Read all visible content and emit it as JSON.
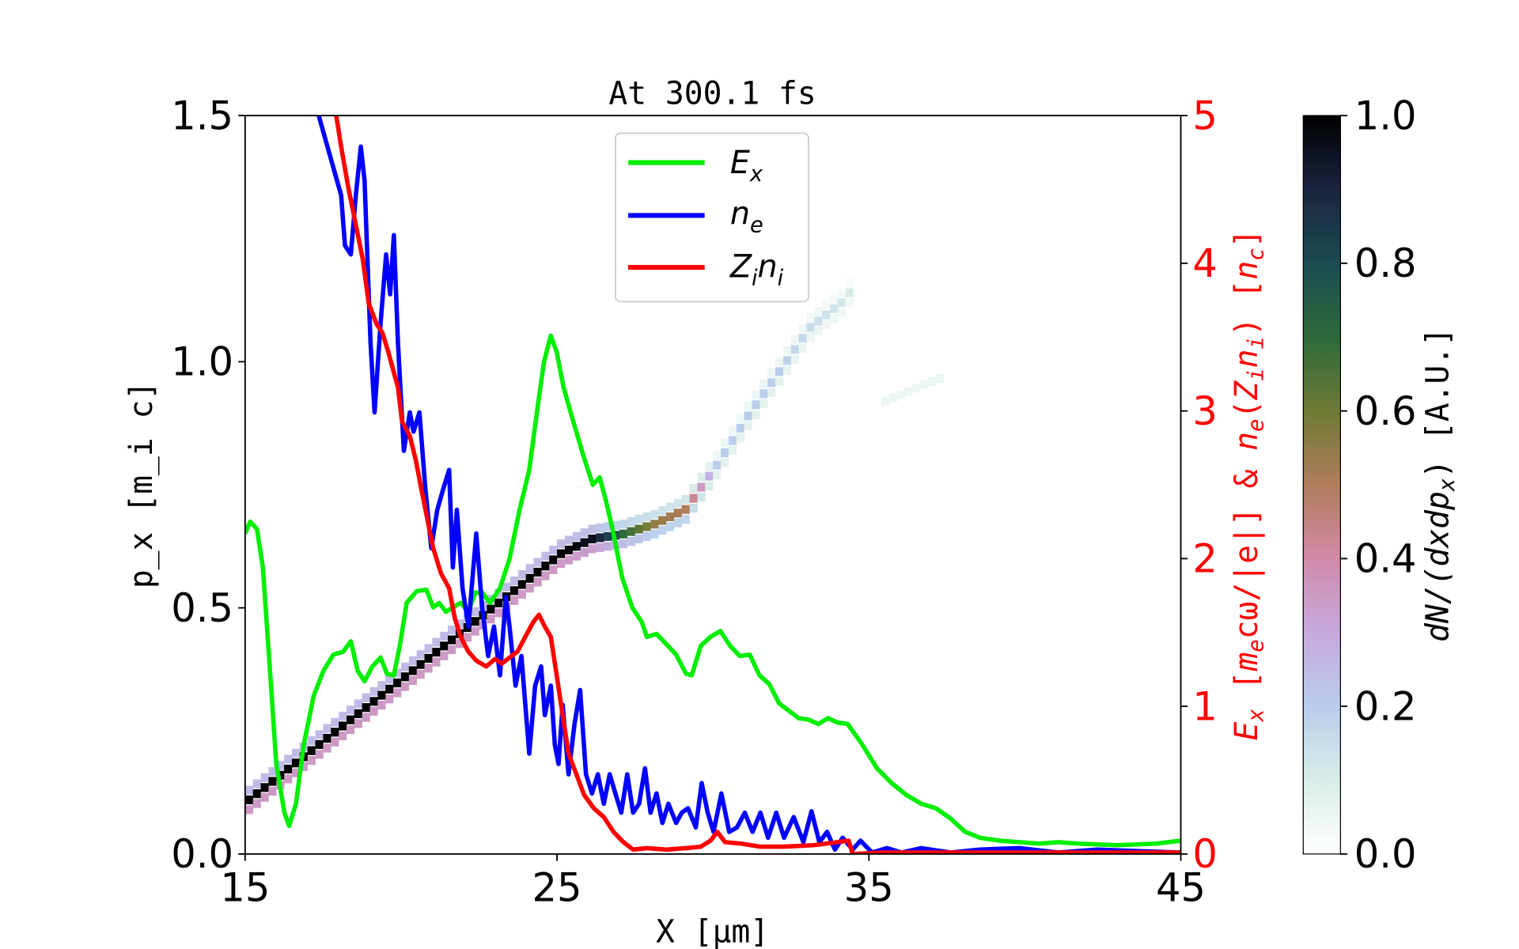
{
  "chart_data": {
    "type": "line",
    "title": "At 300.1 fs",
    "xlabel": "X [μm]",
    "xlabel_parts": {
      "main": "X [",
      "mu": "μm",
      "end": "]"
    },
    "ylabel": "p_x [m_i c]",
    "ylabel_parts": {
      "p": "p",
      "sub": "x",
      "rest": " [m",
      "sub2": "i",
      "end": "c]"
    },
    "y2label": "E_x [m_e cω/|e|] & n_e(Z_i n_i) [n_c]",
    "y2label_parts": [
      "E",
      "x",
      " [",
      "m",
      "e",
      "cω/|e|] & ",
      "n",
      "e",
      "(",
      "Z",
      "i",
      "n",
      "i",
      ") [",
      "n",
      "c",
      "]"
    ],
    "cbar_label": "dN/(dxdp_x) [A.U.]",
    "cbar_label_parts": {
      "main": "dN/(dxdp",
      "sub": "x",
      "end": ")  [A.U.]"
    },
    "xlim": [
      15,
      45
    ],
    "ylim": [
      0,
      1.5
    ],
    "y2lim": [
      0,
      5
    ],
    "clim": [
      0,
      1
    ],
    "xticks": [
      "15",
      "25",
      "35",
      "45"
    ],
    "yticks": [
      "0.0",
      "0.5",
      "1.0",
      "1.5"
    ],
    "y2ticks": [
      "0",
      "1",
      "2",
      "3",
      "4",
      "5"
    ],
    "cticks": [
      "0.0",
      "0.2",
      "0.4",
      "0.6",
      "0.8",
      "1.0"
    ],
    "legend": {
      "placement": "top-center",
      "entries": [
        {
          "main": "E",
          "sub": "x",
          "color": "#00ee00"
        },
        {
          "main": "n",
          "sub": "e",
          "color": "#0000ff"
        },
        {
          "main": "Z",
          "sub": "i",
          "main2": "n",
          "sub2": "i",
          "color": "#ff0000"
        }
      ]
    },
    "colors": {
      "Ex": "#00ee00",
      "ne": "#0000ff",
      "Zini": "#ff0000",
      "right_axis": "#ff0000"
    },
    "series": [
      {
        "name": "Ex",
        "axis": "right",
        "x": [
          15.0,
          15.16,
          15.38,
          15.57,
          15.79,
          16.0,
          16.26,
          16.41,
          16.63,
          16.88,
          17.2,
          17.51,
          17.83,
          18.14,
          18.39,
          18.61,
          18.83,
          19.08,
          19.34,
          19.55,
          19.77,
          19.96,
          20.18,
          20.5,
          20.81,
          21.03,
          21.22,
          21.44,
          21.66,
          21.91,
          22.16,
          22.38,
          22.6,
          22.85,
          23.17,
          23.48,
          23.8,
          24.11,
          24.36,
          24.58,
          24.8,
          24.99,
          25.21,
          25.52,
          25.84,
          26.15,
          26.37,
          26.56,
          26.78,
          27.09,
          27.41,
          27.72,
          27.88,
          28.19,
          28.51,
          28.82,
          29.14,
          29.32,
          29.61,
          29.92,
          30.24,
          30.55,
          30.86,
          31.18,
          31.49,
          31.81,
          32.12,
          32.43,
          32.75,
          33.06,
          33.38,
          33.69,
          34.0,
          34.32,
          34.79,
          35.26,
          35.73,
          36.2,
          36.68,
          37.15,
          37.62,
          38.09,
          38.56,
          39.19,
          39.82,
          40.45,
          41.07,
          41.7,
          42.96,
          44.21,
          45.0
        ],
        "y": [
          2.17,
          2.25,
          2.2,
          1.94,
          1.27,
          0.61,
          0.28,
          0.19,
          0.34,
          0.74,
          1.07,
          1.24,
          1.35,
          1.37,
          1.44,
          1.24,
          1.17,
          1.27,
          1.33,
          1.22,
          1.21,
          1.41,
          1.7,
          1.78,
          1.79,
          1.67,
          1.7,
          1.64,
          1.67,
          1.7,
          1.64,
          1.77,
          1.77,
          1.7,
          1.8,
          2.0,
          2.33,
          2.6,
          3.0,
          3.33,
          3.51,
          3.4,
          3.16,
          2.93,
          2.7,
          2.5,
          2.55,
          2.4,
          2.2,
          1.87,
          1.67,
          1.57,
          1.47,
          1.49,
          1.42,
          1.35,
          1.22,
          1.21,
          1.41,
          1.47,
          1.51,
          1.41,
          1.34,
          1.35,
          1.21,
          1.15,
          1.02,
          0.97,
          0.92,
          0.91,
          0.88,
          0.92,
          0.89,
          0.88,
          0.74,
          0.58,
          0.48,
          0.4,
          0.34,
          0.31,
          0.24,
          0.15,
          0.11,
          0.09,
          0.08,
          0.07,
          0.08,
          0.07,
          0.06,
          0.07,
          0.09
        ]
      },
      {
        "name": "ne",
        "axis": "right",
        "x": [
          17.36,
          18.08,
          18.2,
          18.39,
          18.55,
          18.71,
          18.83,
          19.02,
          19.15,
          19.34,
          19.52,
          19.65,
          19.77,
          19.9,
          20.09,
          20.28,
          20.4,
          20.59,
          20.78,
          20.97,
          21.16,
          21.35,
          21.54,
          21.66,
          21.79,
          21.97,
          22.16,
          22.41,
          22.6,
          22.79,
          22.98,
          23.17,
          23.36,
          23.48,
          23.67,
          23.86,
          24.11,
          24.3,
          24.49,
          24.61,
          24.8,
          24.93,
          25.05,
          25.18,
          25.37,
          25.56,
          25.74,
          25.93,
          26.12,
          26.31,
          26.5,
          26.69,
          26.87,
          27.06,
          27.25,
          27.44,
          27.63,
          27.82,
          28.0,
          28.19,
          28.38,
          28.57,
          28.82,
          29.0,
          29.2,
          29.45,
          29.64,
          29.83,
          30.02,
          30.27,
          30.52,
          30.77,
          31.02,
          31.27,
          31.52,
          31.77,
          32.03,
          32.28,
          32.59,
          32.9,
          33.16,
          33.41,
          33.66,
          33.91,
          34.16,
          34.48,
          34.73,
          35.1,
          35.58,
          36.05,
          36.68,
          37.62,
          38.56,
          39.82,
          41.07,
          42.33,
          43.59,
          45.0
        ],
        "y": [
          5.0,
          4.46,
          4.12,
          4.06,
          4.46,
          4.79,
          4.56,
          3.46,
          2.99,
          3.59,
          4.06,
          3.79,
          4.19,
          3.46,
          2.73,
          2.99,
          2.86,
          2.99,
          2.47,
          2.07,
          2.33,
          2.47,
          2.6,
          1.94,
          2.33,
          1.8,
          1.54,
          2.17,
          1.67,
          1.34,
          1.54,
          1.21,
          1.74,
          1.54,
          1.14,
          1.34,
          0.68,
          1.14,
          1.27,
          0.94,
          1.14,
          0.74,
          0.61,
          1.01,
          0.54,
          0.88,
          1.11,
          0.54,
          0.41,
          0.54,
          0.34,
          0.54,
          0.41,
          0.28,
          0.54,
          0.28,
          0.34,
          0.58,
          0.28,
          0.41,
          0.21,
          0.34,
          0.21,
          0.28,
          0.31,
          0.18,
          0.48,
          0.28,
          0.15,
          0.41,
          0.15,
          0.18,
          0.28,
          0.15,
          0.28,
          0.11,
          0.28,
          0.11,
          0.25,
          0.08,
          0.29,
          0.08,
          0.15,
          0.03,
          0.11,
          0.03,
          0.09,
          0.01,
          0.04,
          0.01,
          0.04,
          0.01,
          0.03,
          0.04,
          0.01,
          0.03,
          0.02,
          0.01
        ]
      },
      {
        "name": "Zini",
        "axis": "right",
        "x": [
          17.92,
          18.08,
          18.3,
          18.52,
          18.77,
          18.96,
          19.21,
          19.4,
          19.59,
          19.77,
          19.9,
          20.03,
          20.28,
          20.47,
          20.65,
          20.84,
          21.03,
          21.28,
          21.54,
          21.72,
          21.91,
          22.16,
          22.41,
          22.73,
          23.01,
          23.23,
          23.48,
          23.73,
          23.98,
          24.24,
          24.42,
          24.61,
          24.8,
          24.99,
          25.18,
          25.37,
          25.62,
          25.87,
          26.18,
          26.5,
          26.81,
          27.13,
          27.44,
          27.88,
          28.51,
          29.14,
          29.61,
          29.92,
          30.14,
          30.39,
          30.9,
          31.52,
          32.28,
          33.22,
          34.0,
          34.35,
          34.48,
          35.42,
          45.0
        ],
        "y": [
          5.0,
          4.79,
          4.52,
          4.29,
          4.03,
          3.73,
          3.59,
          3.53,
          3.4,
          3.26,
          3.16,
          2.93,
          2.83,
          2.67,
          2.47,
          2.27,
          2.07,
          1.9,
          1.8,
          1.6,
          1.47,
          1.37,
          1.31,
          1.27,
          1.32,
          1.29,
          1.33,
          1.37,
          1.47,
          1.57,
          1.62,
          1.54,
          1.47,
          1.21,
          0.94,
          0.68,
          0.54,
          0.4,
          0.31,
          0.25,
          0.15,
          0.08,
          0.03,
          0.04,
          0.03,
          0.04,
          0.05,
          0.09,
          0.15,
          0.08,
          0.07,
          0.05,
          0.05,
          0.06,
          0.08,
          0.09,
          0.0,
          0.01,
          0.01
        ]
      }
    ],
    "heatmap_ridge": [
      [
        15.0,
        0.11,
        1.0
      ],
      [
        16.0,
        0.16,
        1.0
      ],
      [
        17.0,
        0.21,
        1.0
      ],
      [
        18.0,
        0.26,
        1.0
      ],
      [
        19.0,
        0.31,
        1.0
      ],
      [
        20.0,
        0.36,
        1.0
      ],
      [
        21.0,
        0.41,
        1.0
      ],
      [
        22.0,
        0.46,
        1.0
      ],
      [
        23.0,
        0.51,
        1.0
      ],
      [
        24.0,
        0.56,
        1.0
      ],
      [
        25.0,
        0.61,
        1.0
      ],
      [
        26.0,
        0.64,
        0.95
      ],
      [
        27.0,
        0.65,
        0.7
      ],
      [
        28.0,
        0.67,
        0.55
      ],
      [
        29.0,
        0.7,
        0.5
      ],
      [
        30.0,
        0.79,
        0.2
      ],
      [
        31.0,
        0.89,
        0.2
      ],
      [
        32.0,
        0.98,
        0.2
      ],
      [
        33.0,
        1.07,
        0.15
      ],
      [
        34.0,
        1.12,
        0.12
      ],
      [
        34.5,
        1.16,
        0.08
      ]
    ],
    "heatmap_faint": [
      [
        35.4,
        0.92,
        0.03
      ],
      [
        37.3,
        0.97,
        0.03
      ]
    ]
  }
}
